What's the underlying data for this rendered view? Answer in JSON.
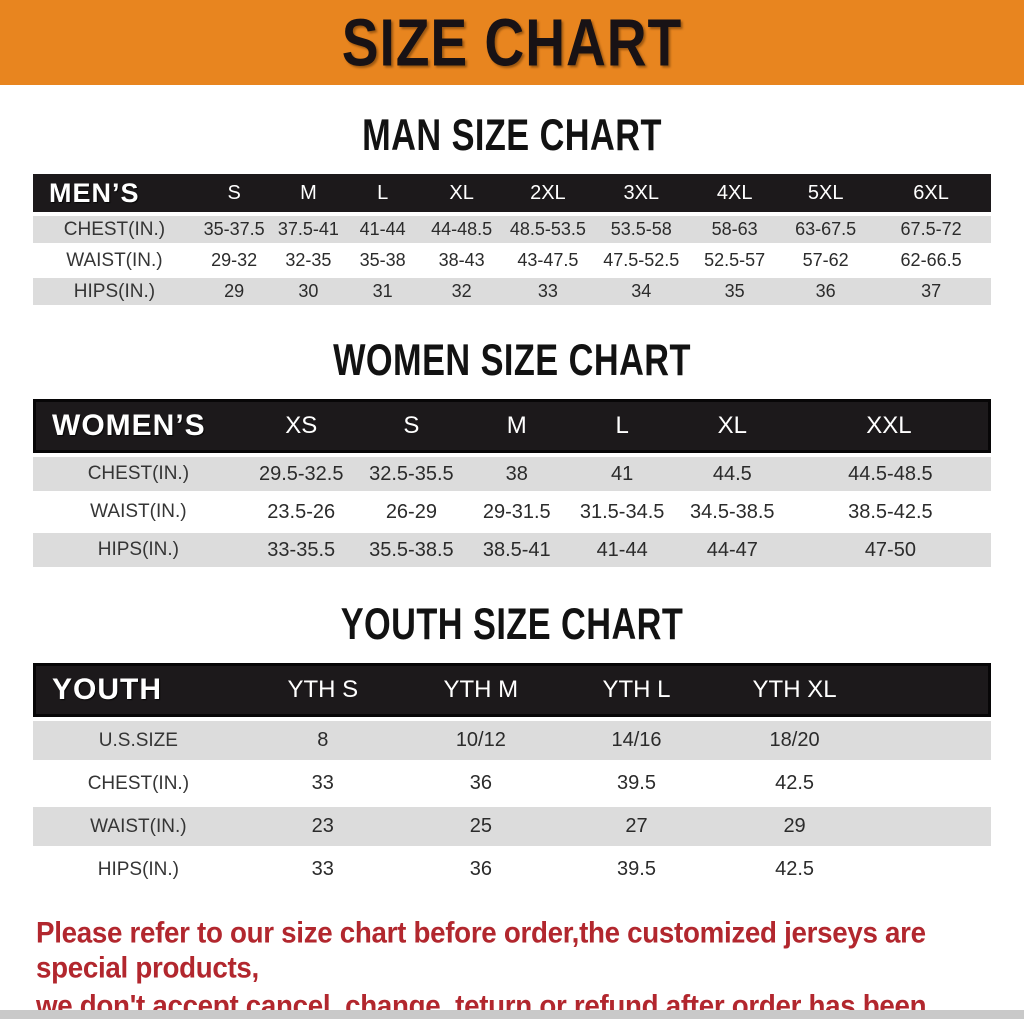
{
  "banner": {
    "title": "SIZE CHART"
  },
  "sections": [
    {
      "title": "MAN SIZE CHART",
      "header_label": "MEN’S",
      "sizes": [
        "S",
        "M",
        "L",
        "XL",
        "2XL",
        "3XL",
        "4XL",
        "5XL",
        "6XL"
      ],
      "rows": [
        {
          "label": "CHEST(IN.)",
          "values": [
            "35-37.5",
            "37.5-41",
            "41-44",
            "44-48.5",
            "48.5-53.5",
            "53.5-58",
            "58-63",
            "63-67.5",
            "67.5-72"
          ]
        },
        {
          "label": "WAIST(IN.)",
          "values": [
            "29-32",
            "32-35",
            "35-38",
            "38-43",
            "43-47.5",
            "47.5-52.5",
            "52.5-57",
            "57-62",
            "62-66.5"
          ]
        },
        {
          "label": "HIPS(IN.)",
          "values": [
            "29",
            "30",
            "31",
            "32",
            "33",
            "34",
            "35",
            "36",
            "37"
          ]
        }
      ]
    },
    {
      "title": "WOMEN SIZE CHART",
      "header_label": "WOMEN’S",
      "sizes": [
        "XS",
        "S",
        "M",
        "L",
        "XL",
        "XXL"
      ],
      "rows": [
        {
          "label": "CHEST(IN.)",
          "values": [
            "29.5-32.5",
            "32.5-35.5",
            "38",
            "41",
            "44.5",
            "44.5-48.5"
          ]
        },
        {
          "label": "WAIST(IN.)",
          "values": [
            "23.5-26",
            "26-29",
            "29-31.5",
            "31.5-34.5",
            "34.5-38.5",
            "38.5-42.5"
          ]
        },
        {
          "label": "HIPS(IN.)",
          "values": [
            "33-35.5",
            "35.5-38.5",
            "38.5-41",
            "41-44",
            "44-47",
            "47-50"
          ]
        }
      ]
    },
    {
      "title": "YOUTH SIZE CHART",
      "header_label": "YOUTH",
      "sizes": [
        "YTH S",
        "YTH M",
        "YTH L",
        "YTH XL"
      ],
      "rows": [
        {
          "label": "U.S.SIZE",
          "values": [
            "8",
            "10/12",
            "14/16",
            "18/20"
          ]
        },
        {
          "label": "CHEST(IN.)",
          "values": [
            "33",
            "36",
            "39.5",
            "42.5"
          ]
        },
        {
          "label": "WAIST(IN.)",
          "values": [
            "23",
            "25",
            "27",
            "29"
          ]
        },
        {
          "label": "HIPS(IN.)",
          "values": [
            "33",
            "36",
            "39.5",
            "42.5"
          ]
        }
      ]
    }
  ],
  "disclaimer": {
    "line1": "Please refer to our size chart before order,the customized jerseys are special products,",
    "line2": "we don't accept cancel, change, teturn or refund after order has been placed!"
  },
  "colors": {
    "banner_bg": "#E8851F",
    "banner_text": "#181215",
    "header_bar_bg": "#1C191B",
    "header_bar_text": "#FFFFFF",
    "row_alt_bg": "#DCDCDC",
    "disclaimer_red": "#B2272E"
  }
}
